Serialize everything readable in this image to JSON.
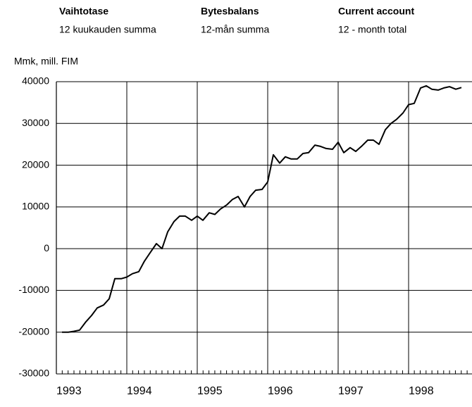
{
  "chart_data": {
    "type": "line",
    "headers": [
      {
        "title": "Vaihtotase",
        "subtitle": "12 kuukauden summa"
      },
      {
        "title": "Bytesbalans",
        "subtitle": "12-mån summa"
      },
      {
        "title": "Current account",
        "subtitle": "12 - month total"
      }
    ],
    "ylabel": "Mmk, mill. FIM",
    "year_labels": [
      "1993",
      "1994",
      "1995",
      "1996",
      "1997",
      "1998"
    ],
    "x": [
      1993.08,
      1993.17,
      1993.25,
      1993.33,
      1993.42,
      1993.5,
      1993.58,
      1993.67,
      1993.75,
      1993.83,
      1993.92,
      1994.0,
      1994.08,
      1994.17,
      1994.25,
      1994.33,
      1994.42,
      1994.5,
      1994.58,
      1994.67,
      1994.75,
      1994.83,
      1994.92,
      1995.0,
      1995.08,
      1995.17,
      1995.25,
      1995.33,
      1995.42,
      1995.5,
      1995.58,
      1995.67,
      1995.75,
      1995.83,
      1995.92,
      1996.0,
      1996.08,
      1996.17,
      1996.25,
      1996.33,
      1996.42,
      1996.5,
      1996.58,
      1996.67,
      1996.75,
      1996.83,
      1996.92,
      1997.0,
      1997.08,
      1997.17,
      1997.25,
      1997.33,
      1997.42,
      1997.5,
      1997.58,
      1997.67,
      1997.75,
      1997.83,
      1997.92,
      1998.0,
      1998.08,
      1998.17,
      1998.25,
      1998.33,
      1998.42,
      1998.5,
      1998.58,
      1998.67,
      1998.75
    ],
    "series": [
      {
        "color": "#000000",
        "values": [
          -20000,
          -20000,
          -19800,
          -19500,
          -17500,
          -16000,
          -14200,
          -13500,
          -12000,
          -7200,
          -7200,
          -6800,
          -6000,
          -5500,
          -3000,
          -1000,
          1200,
          0,
          4000,
          6500,
          7800,
          7800,
          6800,
          7800,
          6800,
          8600,
          8200,
          9500,
          10500,
          11800,
          12500,
          10000,
          12500,
          14000,
          14200,
          16000,
          22500,
          20500,
          22000,
          21500,
          21500,
          22800,
          23000,
          24800,
          24500,
          24000,
          23800,
          25500,
          23000,
          24200,
          23300,
          24500,
          26000,
          26000,
          25000,
          28500,
          30000,
          31000,
          32500,
          34500,
          34800,
          38500,
          39000,
          38200,
          38000,
          38500,
          38800,
          38200,
          38600
        ]
      }
    ],
    "xlim": [
      1993,
      1998.9
    ],
    "xticks": [
      1994,
      1995,
      1996,
      1997,
      1998
    ],
    "ylim": [
      -30000,
      40000
    ],
    "yticks": [
      -30000,
      -20000,
      -10000,
      0,
      10000,
      20000,
      30000,
      40000
    ],
    "grid": true
  }
}
